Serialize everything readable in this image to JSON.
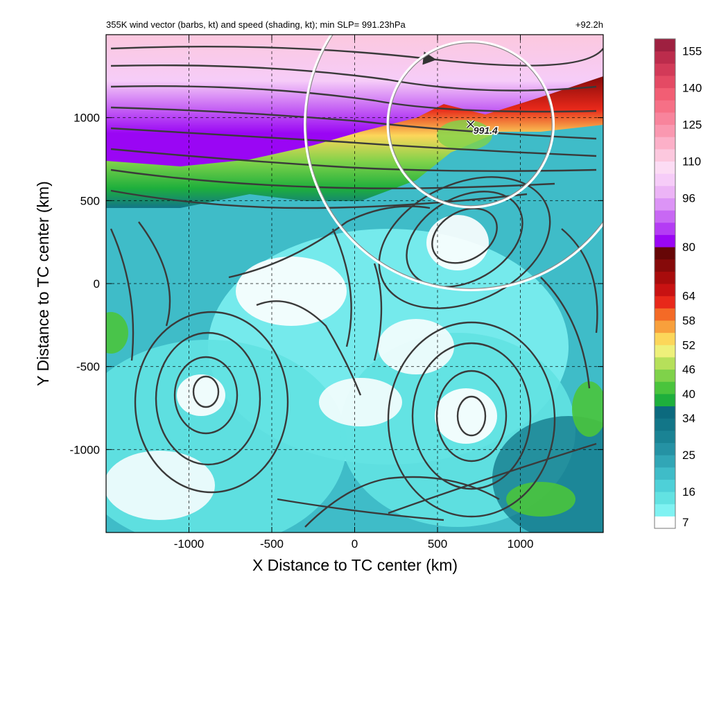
{
  "chart_data": {
    "type": "heatmap",
    "title": "355K wind vector (barbs, kt) and speed (shading, kt); min SLP= 991.23hPa",
    "lead_time": "+92.2h",
    "xlabel": "X Distance to TC center (km)",
    "ylabel": "Y Distance to TC center (km)",
    "xlim": [
      -1500,
      1500
    ],
    "ylim": [
      -1500,
      1500
    ],
    "xticks": [
      -1000,
      -500,
      0,
      500,
      1000
    ],
    "yticks": [
      -1000,
      -500,
      0,
      500,
      1000
    ],
    "xtick_labels": [
      "-1000",
      "-500",
      "0",
      "500",
      "1000"
    ],
    "ytick_labels": [
      "-1000",
      "-500",
      "0",
      "500",
      "1000"
    ],
    "grid": true,
    "colorbar": {
      "levels": [
        7,
        10,
        13,
        16,
        19,
        22,
        25,
        28,
        31,
        34,
        37,
        40,
        43,
        46,
        49,
        52,
        55,
        58,
        61,
        64,
        68,
        72,
        76,
        80,
        84,
        88,
        92,
        96,
        100,
        105,
        110,
        115,
        120,
        125,
        130,
        135,
        140,
        145,
        150,
        155,
        160
      ],
      "labels": [
        "7",
        "16",
        "25",
        "34",
        "40",
        "46",
        "52",
        "58",
        "64",
        "80",
        "96",
        "110",
        "125",
        "140",
        "155"
      ],
      "label_positions": [
        7,
        16,
        25,
        34,
        40,
        46,
        52,
        58,
        64,
        80,
        96,
        110,
        125,
        140,
        155
      ],
      "colors": [
        "#ffffff",
        "#7ff2f2",
        "#62e2e2",
        "#4ed0d8",
        "#3fbcc8",
        "#31a6b6",
        "#2592a4",
        "#1a8394",
        "#127688",
        "#0c6a7e",
        "#1eaf3c",
        "#4ac43c",
        "#7fd24a",
        "#b6e05a",
        "#eef07a",
        "#fcd65a",
        "#f8a03c",
        "#f46a26",
        "#e8281a",
        "#c81212",
        "#a80c0c",
        "#860a0a",
        "#660606",
        "#9a06f4",
        "#b43cf4",
        "#c868f4",
        "#dc94f6",
        "#ecb4f6",
        "#f6ccf8",
        "#fcdcf4",
        "#fcc8de",
        "#fcb0c8",
        "#fa98b0",
        "#f8849c",
        "#f67086",
        "#f25e74",
        "#e44a64",
        "#d23a58",
        "#bc2c4c",
        "#9e2040"
      ]
    },
    "storm_marker": {
      "label": "991.4",
      "x": 700,
      "y": 960
    },
    "range_rings": [
      {
        "x": 700,
        "y": 960,
        "r": 500
      },
      {
        "x": 700,
        "y": 960,
        "r": 1000
      }
    ],
    "vortex_centers": [
      {
        "x": -900,
        "y": -680
      },
      {
        "x": 650,
        "y": 250
      },
      {
        "x": 700,
        "y": -800
      }
    ]
  }
}
